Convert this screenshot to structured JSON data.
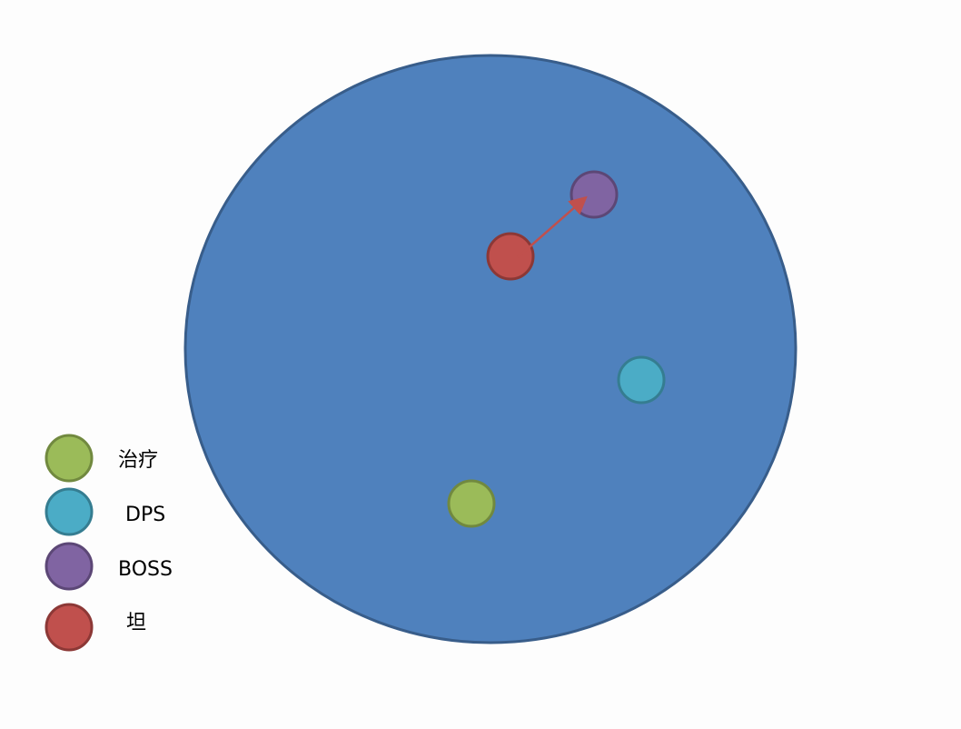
{
  "legend": [
    "治疗",
    "DPS",
    "BOSS",
    "坦"
  ]
}
